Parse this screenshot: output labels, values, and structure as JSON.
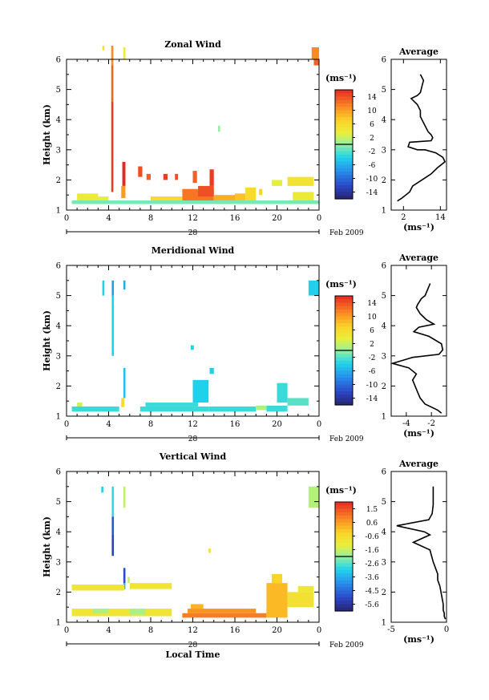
{
  "chart_data": [
    {
      "type": "heatmap",
      "title": "Zonal Wind",
      "ylabel": "Height (km)",
      "xlabel": "",
      "x_ticks": [
        "0",
        "4",
        "8",
        "12",
        "16",
        "20",
        "0"
      ],
      "y_ticks": [
        "1",
        "2",
        "3",
        "4",
        "5",
        "6"
      ],
      "xlim": [
        0,
        24
      ],
      "ylim": [
        1,
        6
      ],
      "date_day": "28",
      "date_label": "Feb 2009",
      "colorbar": {
        "unit": "(ms⁻¹)",
        "ticks": [
          "14",
          "10",
          "6",
          "2",
          "-2",
          "-6",
          "-10",
          "-14"
        ],
        "range": [
          -16,
          16
        ]
      },
      "cells": [
        [
          3.4,
          3.6,
          6.3,
          6.45,
          5
        ],
        [
          4.25,
          4.45,
          5.8,
          6.45,
          11
        ],
        [
          4.25,
          4.45,
          4.6,
          5.8,
          13
        ],
        [
          4.25,
          4.45,
          1.6,
          4.6,
          15
        ],
        [
          5.4,
          5.6,
          6.0,
          6.4,
          4
        ],
        [
          5.3,
          5.6,
          1.8,
          2.6,
          16
        ],
        [
          5.2,
          5.6,
          1.4,
          1.8,
          10
        ],
        [
          6.8,
          7.2,
          2.1,
          2.45,
          14
        ],
        [
          7.6,
          8.0,
          2.0,
          2.2,
          13
        ],
        [
          9.2,
          9.6,
          2.0,
          2.2,
          15
        ],
        [
          10.3,
          10.6,
          2.0,
          2.2,
          14
        ],
        [
          12.0,
          12.4,
          1.9,
          2.3,
          13
        ],
        [
          13.6,
          14.0,
          1.8,
          2.35,
          15
        ],
        [
          14.4,
          14.6,
          3.6,
          3.8,
          0
        ],
        [
          11.0,
          14.0,
          1.3,
          1.7,
          12
        ],
        [
          12.5,
          14.0,
          1.45,
          1.8,
          14
        ],
        [
          14.0,
          16.0,
          1.3,
          1.5,
          9
        ],
        [
          16.0,
          17.0,
          1.3,
          1.55,
          8
        ],
        [
          1.0,
          3.0,
          1.3,
          1.55,
          4
        ],
        [
          3.0,
          4.0,
          1.3,
          1.45,
          3
        ],
        [
          8.0,
          11.0,
          1.3,
          1.45,
          6
        ],
        [
          17.0,
          18.0,
          1.3,
          1.75,
          6
        ],
        [
          18.3,
          18.6,
          1.5,
          1.7,
          7
        ],
        [
          19.5,
          20.5,
          1.8,
          2.0,
          3
        ],
        [
          21.0,
          23.5,
          1.8,
          2.1,
          5
        ],
        [
          21.5,
          23.5,
          1.3,
          1.6,
          4
        ],
        [
          23.3,
          24.0,
          6.0,
          6.4,
          11
        ],
        [
          23.5,
          24.0,
          5.8,
          6.0,
          13
        ],
        [
          0.5,
          24.0,
          1.2,
          1.32,
          -1
        ]
      ]
    },
    {
      "type": "line",
      "title": "Average",
      "xlabel": "(ms⁻¹)",
      "x_ticks": [
        "2",
        "14"
      ],
      "y_ticks": [
        "1",
        "2",
        "3",
        "4",
        "5",
        "6"
      ],
      "xlim": [
        -2,
        16
      ],
      "ylim": [
        1,
        6
      ],
      "x": [
        7.5,
        8.5,
        8.0,
        7.5,
        6.5,
        4.5,
        6.5,
        7.5,
        7.5,
        8.0,
        9.0,
        10.0,
        11.0,
        11.5,
        11.0,
        4.0,
        3.5,
        6.5,
        9.0,
        12.5,
        14.8,
        15.5,
        13.0,
        11.0,
        8.0,
        5.0,
        4.0,
        1.5,
        0.0
      ],
      "y": [
        5.5,
        5.3,
        5.1,
        4.9,
        4.8,
        4.7,
        4.5,
        4.3,
        4.1,
        4.0,
        3.8,
        3.6,
        3.5,
        3.4,
        3.3,
        3.25,
        3.1,
        3.0,
        3.0,
        2.9,
        2.75,
        2.6,
        2.4,
        2.2,
        2.0,
        1.8,
        1.6,
        1.4,
        1.3
      ]
    },
    {
      "type": "heatmap",
      "title": "Meridional Wind",
      "ylabel": "Height (km)",
      "xlabel": "",
      "x_ticks": [
        "0",
        "4",
        "8",
        "12",
        "16",
        "20",
        "0"
      ],
      "y_ticks": [
        "1",
        "2",
        "3",
        "4",
        "5",
        "6"
      ],
      "xlim": [
        0,
        24
      ],
      "ylim": [
        1,
        6
      ],
      "date_day": "28",
      "date_label": "Feb 2009",
      "colorbar": {
        "unit": "(ms⁻¹)",
        "ticks": [
          "14",
          "10",
          "6",
          "2",
          "-2",
          "-6",
          "-10",
          "-14"
        ],
        "range": [
          -16,
          16
        ]
      },
      "cells": [
        [
          3.4,
          3.6,
          5.0,
          5.5,
          -4
        ],
        [
          4.3,
          4.5,
          5.0,
          5.5,
          -7
        ],
        [
          4.3,
          4.5,
          3.0,
          5.0,
          -4
        ],
        [
          5.4,
          5.6,
          5.2,
          5.5,
          -6
        ],
        [
          5.4,
          5.6,
          1.6,
          2.6,
          -5
        ],
        [
          5.2,
          5.5,
          1.3,
          1.6,
          6
        ],
        [
          0.5,
          5.0,
          1.15,
          1.32,
          -3
        ],
        [
          1.0,
          1.5,
          1.32,
          1.45,
          2
        ],
        [
          7.0,
          13.5,
          1.15,
          1.32,
          -3
        ],
        [
          7.5,
          12.5,
          1.32,
          1.45,
          -3
        ],
        [
          11.8,
          12.1,
          3.2,
          3.35,
          -4
        ],
        [
          12.0,
          13.5,
          1.45,
          2.2,
          -4
        ],
        [
          13.6,
          14.0,
          2.4,
          2.6,
          -4
        ],
        [
          13.5,
          18.0,
          1.15,
          1.32,
          -3
        ],
        [
          19.0,
          21.0,
          1.15,
          1.35,
          -3
        ],
        [
          20.0,
          21.0,
          1.45,
          2.1,
          -3
        ],
        [
          21.0,
          23.0,
          1.35,
          1.6,
          -2
        ],
        [
          23.0,
          24.0,
          5.0,
          5.5,
          -4
        ],
        [
          18.0,
          19.0,
          1.2,
          1.35,
          1
        ]
      ]
    },
    {
      "type": "line",
      "title": "Average",
      "xlabel": "(ms⁻¹)",
      "x_ticks": [
        "-4",
        "-2"
      ],
      "y_ticks": [
        "1",
        "2",
        "3",
        "4",
        "5",
        "6"
      ],
      "xlim": [
        -5.2,
        -0.8
      ],
      "ylim": [
        1,
        6
      ],
      "x": [
        -2.1,
        -2.2,
        -2.5,
        -2.8,
        -3.1,
        -3.2,
        -2.9,
        -2.4,
        -1.8,
        -3.0,
        -3.4,
        -2.2,
        -1.2,
        -1.1,
        -1.4,
        -3.5,
        -5.1,
        -3.8,
        -3.2,
        -3.5,
        -3.3,
        -3.1,
        -2.9,
        -2.5,
        -2.0,
        -1.5,
        -1.2
      ],
      "y": [
        5.4,
        5.3,
        5.0,
        4.9,
        4.7,
        4.6,
        4.4,
        4.2,
        4.05,
        3.95,
        3.8,
        3.65,
        3.4,
        3.2,
        3.05,
        2.95,
        2.75,
        2.6,
        2.4,
        2.2,
        2.0,
        1.8,
        1.6,
        1.4,
        1.3,
        1.2,
        1.1
      ]
    },
    {
      "type": "heatmap",
      "title": "Vertical Wind",
      "ylabel": "Height (km)",
      "xlabel": "Local Time",
      "x_ticks": [
        "0",
        "4",
        "8",
        "12",
        "16",
        "20",
        "0"
      ],
      "y_ticks": [
        "1",
        "2",
        "3",
        "4",
        "5",
        "6"
      ],
      "xlim": [
        0,
        24
      ],
      "ylim": [
        1,
        6
      ],
      "date_day": "28",
      "date_label": "Feb 2009",
      "colorbar": {
        "unit": "(ms⁻¹)",
        "ticks": [
          "1.5",
          "0.6",
          "-0.6",
          "-1.6",
          "-2.6",
          "-3.6",
          "-4.5",
          "-5.6"
        ],
        "range": [
          -6,
          2
        ]
      },
      "cells": [
        [
          3.3,
          3.5,
          5.3,
          5.5,
          -3.0
        ],
        [
          4.3,
          4.5,
          4.5,
          5.5,
          -2.8
        ],
        [
          4.3,
          4.5,
          3.9,
          4.5,
          -4.8
        ],
        [
          4.3,
          4.5,
          3.2,
          3.9,
          -5.2
        ],
        [
          5.4,
          5.6,
          4.8,
          5.5,
          -1.6
        ],
        [
          5.4,
          5.6,
          2.3,
          2.8,
          -5.0
        ],
        [
          5.4,
          5.6,
          2.1,
          2.3,
          -3.5
        ],
        [
          0.5,
          5.5,
          2.05,
          2.25,
          -0.8
        ],
        [
          6.0,
          10.0,
          2.1,
          2.3,
          -0.8
        ],
        [
          5.8,
          6.0,
          2.3,
          2.5,
          -1.5
        ],
        [
          13.5,
          13.7,
          3.3,
          3.45,
          -0.6
        ],
        [
          0.5,
          10.0,
          1.2,
          1.45,
          -0.8
        ],
        [
          2.5,
          4.0,
          1.3,
          1.45,
          -1.8
        ],
        [
          6.0,
          7.5,
          1.25,
          1.45,
          -1.8
        ],
        [
          11.0,
          19.0,
          1.15,
          1.3,
          0.9
        ],
        [
          11.5,
          18.0,
          1.3,
          1.45,
          0.6
        ],
        [
          11.8,
          13.0,
          1.45,
          1.6,
          0.2
        ],
        [
          19.0,
          21.0,
          1.15,
          2.3,
          0.1
        ],
        [
          19.5,
          20.5,
          2.3,
          2.6,
          -0.3
        ],
        [
          21.0,
          23.5,
          1.5,
          2.0,
          -0.7
        ],
        [
          22.0,
          23.5,
          2.0,
          2.2,
          -0.9
        ],
        [
          23.0,
          24.0,
          4.8,
          5.5,
          -1.7
        ]
      ]
    },
    {
      "type": "line",
      "title": "Average",
      "xlabel": "(ms⁻¹)",
      "x_ticks": [
        "-5",
        "0"
      ],
      "y_ticks": [
        "1",
        "2",
        "3",
        "4",
        "5",
        "6"
      ],
      "xlim": [
        -5,
        0
      ],
      "ylim": [
        1,
        6
      ],
      "x": [
        -1.2,
        -1.2,
        -1.2,
        -1.3,
        -1.6,
        -4.5,
        -2.0,
        -1.5,
        -3.0,
        -1.5,
        -1.2,
        -1.0,
        -0.8,
        -0.8,
        -0.6,
        -0.5,
        -0.4,
        -0.3,
        -0.3,
        -0.2,
        -0.2,
        -0.1
      ],
      "y": [
        5.5,
        5.2,
        4.9,
        4.6,
        4.4,
        4.2,
        4.0,
        3.9,
        3.65,
        3.4,
        3.0,
        2.8,
        2.6,
        2.4,
        2.2,
        2.0,
        1.8,
        1.6,
        1.4,
        1.3,
        1.2,
        1.1
      ]
    }
  ]
}
